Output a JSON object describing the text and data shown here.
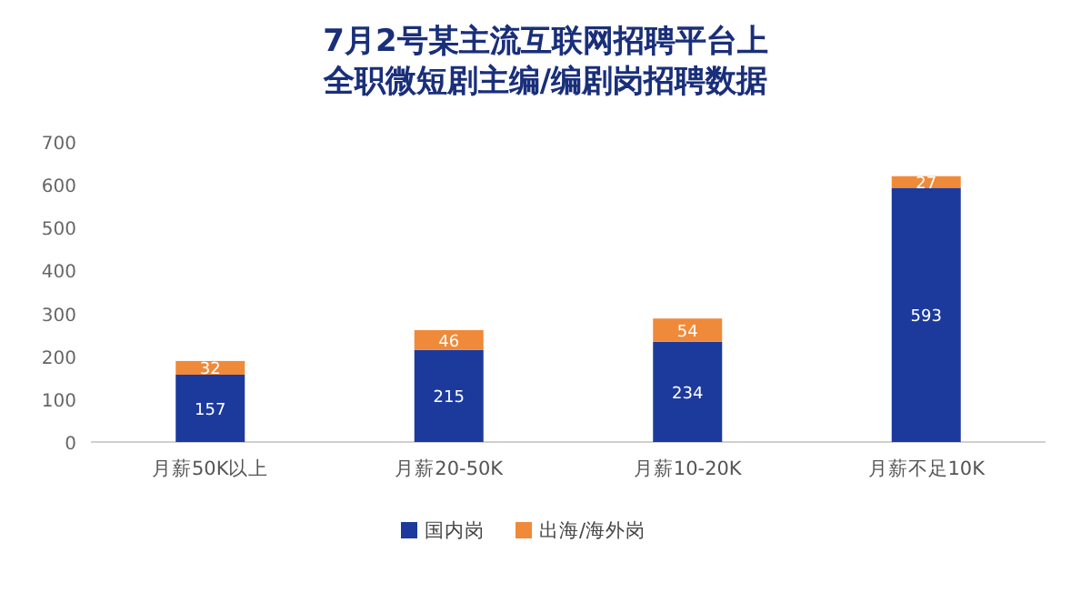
{
  "chart_data": {
    "type": "bar",
    "title": "7月2号某主流互联网招聘平台上全职微短剧主编/编剧岗招聘数据",
    "categories": [
      "月薪50K以上",
      "月薪20-50K",
      "月薪10-20K",
      "月薪不足10K"
    ],
    "series": [
      {
        "name": "国内岗",
        "color": "#1c3a9c",
        "values": [
          157,
          215,
          234,
          593
        ]
      },
      {
        "name": "出海/海外岗",
        "color": "#ef8a3a",
        "values": [
          32,
          46,
          54,
          27
        ]
      }
    ],
    "stacked": true,
    "data_labels": true,
    "ylim": [
      0,
      700
    ],
    "yticks": [
      0,
      100,
      200,
      300,
      400,
      500,
      600,
      700
    ],
    "grid": false,
    "legend": "bottom"
  }
}
